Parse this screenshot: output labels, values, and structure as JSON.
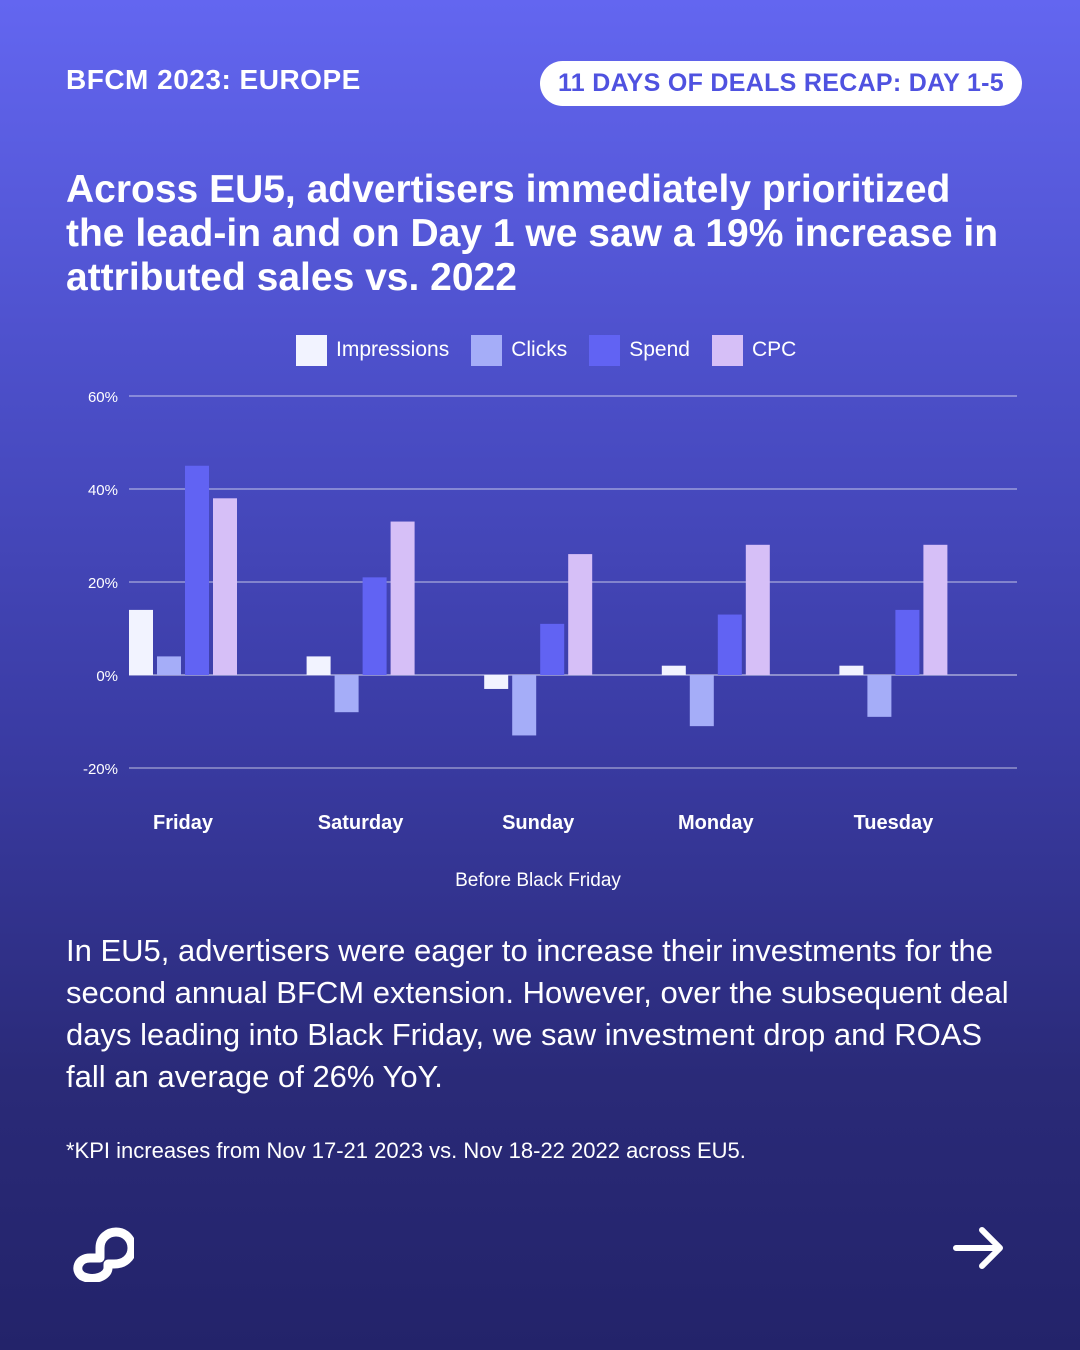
{
  "header": {
    "left_label": "BFCM 2023: EUROPE",
    "pill_label": "11 DAYS OF DEALS RECAP: DAY 1-5"
  },
  "headline": " Across EU5, advertisers immediately prioritized\nthe lead-in and on Day 1 we saw a 19% increase in\nattributed sales vs. 2022",
  "body_text": "In EU5, advertisers were eager to increase their investments for the second annual BFCM extension. However, over the subsequent deal days leading into Black Friday, we saw investment drop and ROAS fall an average of 26% YoY.",
  "footnote": "*KPI increases from Nov 17-21 2023 vs. Nov 18-22 2022 across EU5.",
  "icons": {
    "logo": "brand-logo-icon",
    "next": "arrow-right-icon"
  },
  "colors": {
    "bg_top": "#6366f0",
    "bg_bottom": "#23236a",
    "pill_text": "#4f52e0"
  },
  "chart_data": {
    "type": "bar",
    "categories": [
      "Friday",
      "Saturday",
      "Sunday",
      "Monday",
      "Tuesday"
    ],
    "series": [
      {
        "name": "Impressions",
        "color": "#f2f3ff",
        "values": [
          14,
          4,
          -3,
          2,
          2
        ]
      },
      {
        "name": "Clicks",
        "color": "#a5adf8",
        "values": [
          4,
          -8,
          -13,
          -11,
          -9
        ]
      },
      {
        "name": "Spend",
        "color": "#6163f3",
        "values": [
          45,
          21,
          11,
          13,
          14
        ]
      },
      {
        "name": "CPC",
        "color": "#d6bff7",
        "values": [
          38,
          33,
          26,
          28,
          28
        ]
      }
    ],
    "yticks": [
      -20,
      0,
      20,
      40,
      60
    ],
    "ytick_labels": [
      "-20%",
      "0%",
      "20%",
      "40%",
      "60%"
    ],
    "ylim": [
      -20,
      60
    ],
    "xlabel": "Before Black Friday",
    "ylabel": "",
    "legend_position": "top",
    "grid": true
  }
}
